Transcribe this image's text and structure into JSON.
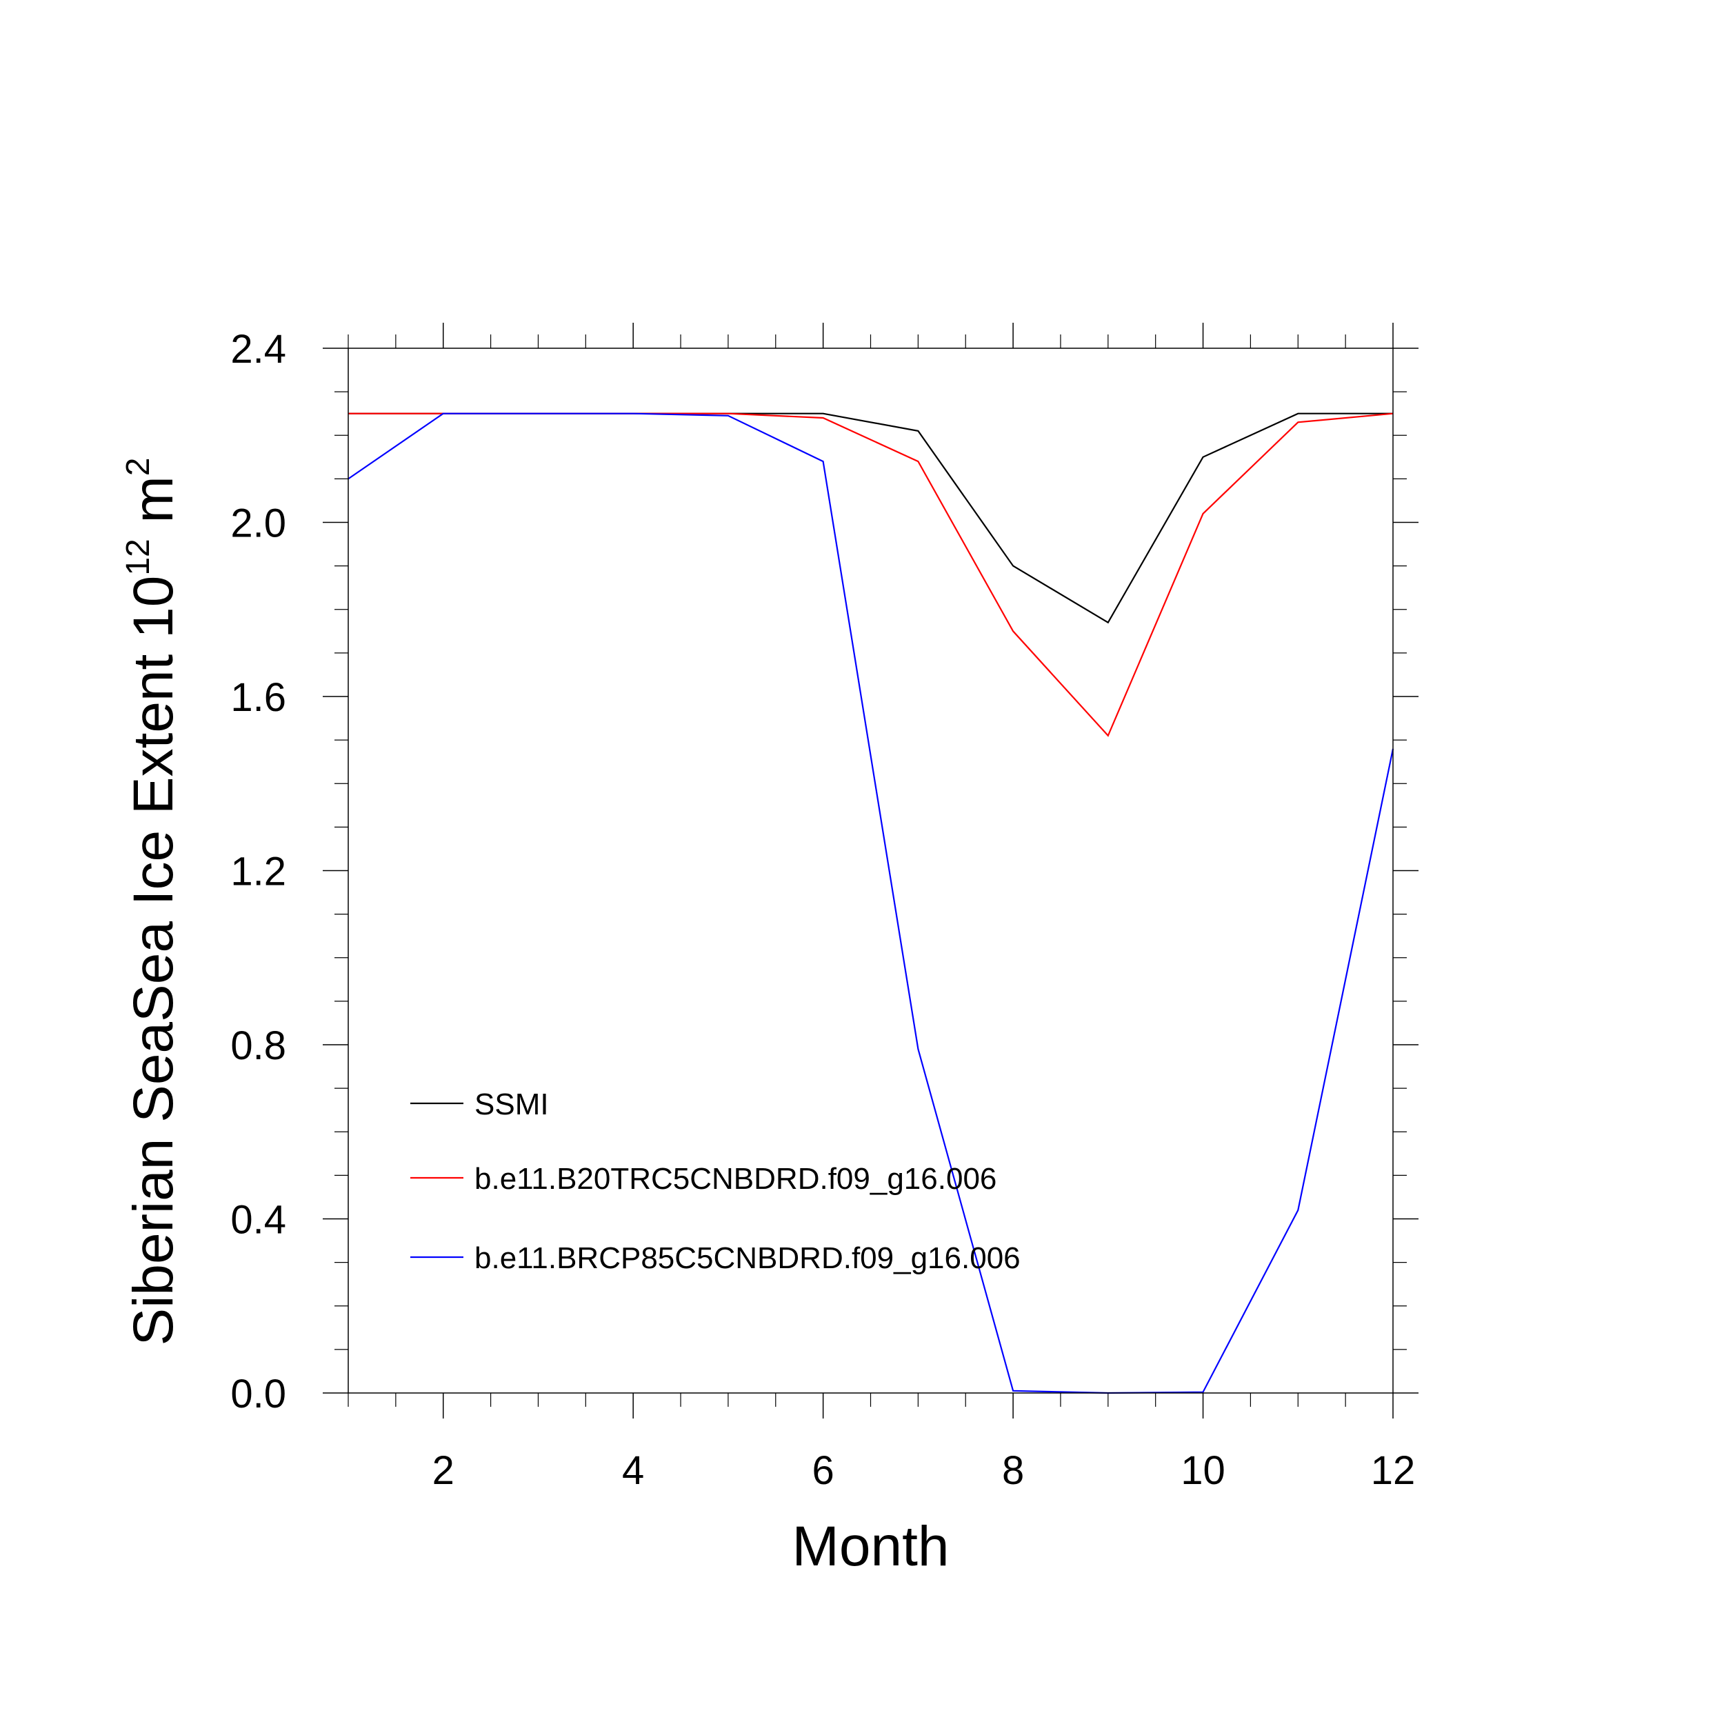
{
  "chart_data": {
    "type": "line",
    "title": "",
    "xlabel": "Month",
    "ylabel": {
      "text": "Siberian SeaSea Ice Extent 10",
      "exponent1": "12",
      "unit": " m",
      "exponent2": "2"
    },
    "xlim": [
      1,
      12
    ],
    "ylim": [
      0,
      2.4
    ],
    "xticks": [
      2,
      4,
      6,
      8,
      10,
      12
    ],
    "xtick_labels": [
      "2",
      "4",
      "6",
      "8",
      "10",
      "12"
    ],
    "yticks": [
      0.0,
      0.4,
      0.8,
      1.2,
      1.6,
      2.0,
      2.4
    ],
    "ytick_labels": [
      "0.0",
      "0.4",
      "0.8",
      "1.2",
      "1.6",
      "2.0",
      "2.4"
    ],
    "grid": false,
    "legend_position": "lower-left",
    "x": [
      1,
      2,
      3,
      4,
      5,
      6,
      7,
      8,
      9,
      10,
      11,
      12
    ],
    "series": [
      {
        "name": "SSMI",
        "color": "#000000",
        "values": [
          2.25,
          2.25,
          2.25,
          2.25,
          2.25,
          2.25,
          2.21,
          1.9,
          1.77,
          2.15,
          2.25,
          2.25
        ]
      },
      {
        "name": "b.e11.B20TRC5CNBDRD.f09_g16.006",
        "color": "#ff0000",
        "values": [
          2.25,
          2.25,
          2.25,
          2.25,
          2.25,
          2.24,
          2.14,
          1.75,
          1.51,
          2.02,
          2.23,
          2.25
        ]
      },
      {
        "name": "b.e11.BRCP85C5CNBDRD.f09_g16.006",
        "color": "#0000ff",
        "values": [
          2.1,
          2.25,
          2.25,
          2.25,
          2.245,
          2.14,
          0.79,
          0.005,
          0.0,
          0.002,
          0.42,
          1.48
        ]
      }
    ]
  }
}
